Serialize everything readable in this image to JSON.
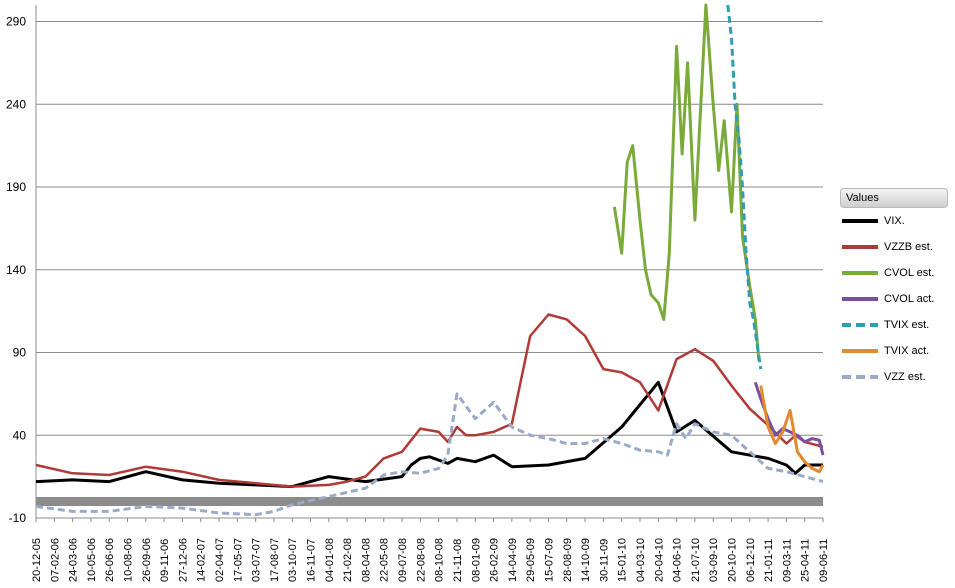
{
  "chart_data": {
    "type": "line",
    "title": "",
    "xlabel": "",
    "ylabel": "",
    "ylim": [
      -10,
      300
    ],
    "yticks": [
      -10,
      40,
      90,
      140,
      190,
      240,
      290
    ],
    "grid": true,
    "legend": {
      "title": "Values",
      "placement": "right"
    },
    "x_categories": [
      "20-12-05",
      "07-02-06",
      "24-03-06",
      "10-05-06",
      "26-06-06",
      "10-08-06",
      "26-09-06",
      "09-11-06",
      "27-12-06",
      "14-02-07",
      "02-04-07",
      "17-05-07",
      "03-07-07",
      "17-08-07",
      "03-10-07",
      "16-11-07",
      "04-01-08",
      "21-02-08",
      "08-04-08",
      "22-05-08",
      "09-07-08",
      "22-08-08",
      "08-10-08",
      "21-11-08",
      "08-01-09",
      "26-02-09",
      "14-04-09",
      "29-05-09",
      "15-07-09",
      "28-08-09",
      "14-10-09",
      "30-11-09",
      "15-01-10",
      "04-03-10",
      "20-04-10",
      "04-06-10",
      "21-07-10",
      "03-09-10",
      "20-10-10",
      "06-12-10",
      "21-01-11",
      "09-03-11",
      "25-04-11",
      "09-06-11"
    ],
    "series": [
      {
        "name": "VIX.",
        "color": "#000000",
        "dash": false,
        "width": 3,
        "x": [
          0,
          2,
          4,
          6,
          8,
          10,
          12,
          14,
          16,
          18,
          20,
          20.5,
          21,
          21.5,
          22,
          22.5,
          23,
          24,
          25,
          26,
          28,
          30,
          32,
          34,
          35,
          36,
          38,
          40,
          41,
          41.5,
          42,
          43
        ],
        "values": [
          12,
          13,
          12,
          18,
          13,
          11,
          10,
          9,
          15,
          12,
          15,
          22,
          26,
          27,
          25,
          23,
          26,
          24,
          28,
          21,
          22,
          26,
          45,
          72,
          42,
          49,
          30,
          26,
          22,
          17,
          22,
          22
        ]
      },
      {
        "name": "VZZB est.",
        "color": "#b03a36",
        "dash": false,
        "width": 2.5,
        "x": [
          0,
          2,
          4,
          6,
          8,
          10,
          12,
          14,
          16,
          17,
          18,
          19,
          20,
          21,
          22,
          22.5,
          23,
          23.5,
          24,
          25,
          26,
          27,
          28,
          29,
          30,
          31,
          32,
          32.5,
          33,
          34,
          35,
          36,
          37,
          38,
          39,
          40,
          41,
          41.5,
          42,
          43
        ],
        "values": [
          22,
          17,
          16,
          21,
          18,
          13,
          11,
          9,
          10,
          12,
          15,
          26,
          30,
          44,
          42,
          36,
          45,
          40,
          40,
          42,
          47,
          100,
          113,
          110,
          100,
          80,
          78,
          75,
          72,
          55,
          86,
          92,
          85,
          70,
          56,
          46,
          35,
          40,
          36,
          33
        ]
      },
      {
        "name": "CVOL est.",
        "color": "#7aaa3a",
        "dash": false,
        "width": 3,
        "x": [
          31.6,
          32,
          32.3,
          32.6,
          33,
          33.3,
          33.6,
          34,
          34.3,
          34.6,
          35,
          35.3,
          35.6,
          36,
          36.3,
          36.6,
          37,
          37.3,
          37.6,
          38,
          38.3,
          38.6,
          39,
          39.3,
          39.5
        ],
        "values": [
          178,
          150,
          205,
          215,
          170,
          140,
          125,
          120,
          110,
          150,
          275,
          210,
          265,
          170,
          235,
          300,
          240,
          200,
          230,
          175,
          240,
          160,
          130,
          110,
          85
        ]
      },
      {
        "name": "CVOL act.",
        "color": "#7a4fa0",
        "dash": false,
        "width": 3,
        "x": [
          39.3,
          39.6,
          40,
          40.4,
          40.8,
          41.2,
          41.6,
          42,
          42.4,
          42.8,
          43
        ],
        "values": [
          72,
          62,
          50,
          40,
          44,
          42,
          40,
          36,
          38,
          37,
          28
        ]
      },
      {
        "name": "TVIX est.",
        "color": "#2f9db2",
        "dash": true,
        "width": 3,
        "x": [
          37.8,
          38,
          38.2,
          38.4,
          38.6,
          38.8,
          39,
          39.2,
          39.4,
          39.6
        ],
        "values": [
          300,
          280,
          240,
          220,
          190,
          150,
          120,
          110,
          95,
          80
        ]
      },
      {
        "name": "TVIX act.",
        "color": "#e38a2f",
        "dash": false,
        "width": 3,
        "x": [
          39.6,
          40,
          40.4,
          40.8,
          41.2,
          41.6,
          42,
          42.4,
          42.8,
          43
        ],
        "values": [
          70,
          45,
          35,
          42,
          55,
          30,
          24,
          20,
          18,
          22
        ]
      },
      {
        "name": "VZZ est.",
        "color": "#9aaac8",
        "dash": true,
        "width": 3,
        "x": [
          0,
          2,
          4,
          6,
          8,
          10,
          12,
          13,
          14,
          16,
          18,
          19,
          20,
          21,
          22,
          22.5,
          23,
          24,
          25,
          26,
          27,
          28,
          29,
          30,
          31,
          32,
          33,
          34,
          34.5,
          35,
          35.5,
          36,
          37,
          38,
          39,
          40,
          41,
          42,
          43
        ],
        "values": [
          -3,
          -6,
          -6,
          -3,
          -4,
          -7,
          -8,
          -6,
          -2,
          3,
          8,
          16,
          18,
          17,
          20,
          28,
          65,
          50,
          60,
          45,
          40,
          38,
          35,
          35,
          38,
          35,
          31,
          30,
          28,
          47,
          38,
          47,
          42,
          40,
          30,
          20,
          18,
          15,
          12
        ]
      }
    ]
  }
}
